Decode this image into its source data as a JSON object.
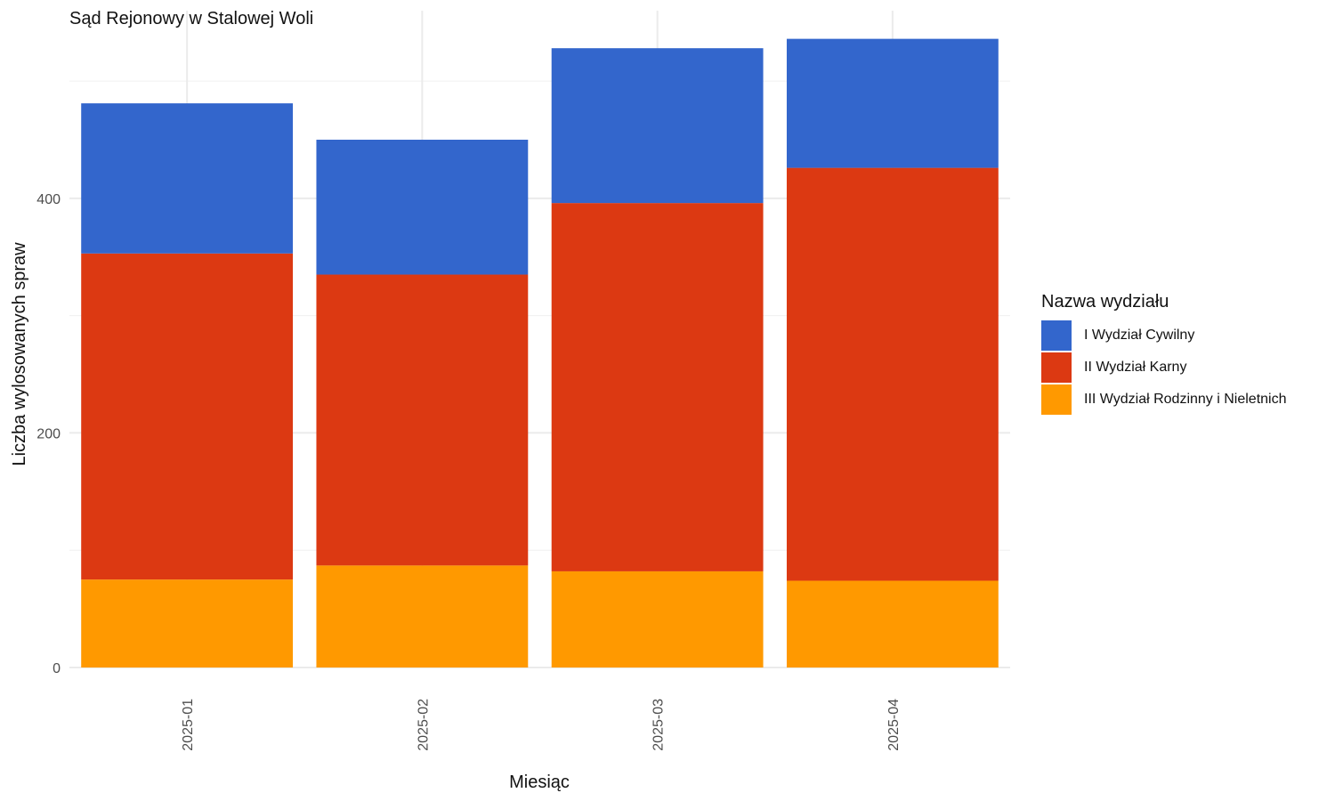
{
  "chart_data": {
    "type": "bar",
    "stacked": true,
    "title": "Sąd Rejonowy w Stalowej Woli",
    "xlabel": "Miesiąc",
    "ylabel": "Liczba wylosowanych spraw",
    "categories": [
      "2025-01",
      "2025-02",
      "2025-03",
      "2025-04"
    ],
    "ylim": [
      0,
      560
    ],
    "yticks": [
      0,
      200,
      400
    ],
    "grid": true,
    "legend_title": "Nazwa wydziału",
    "legend_position": "right",
    "series": [
      {
        "name": "III Wydział Rodzinny i Nieletnich",
        "color": "#FF9900",
        "values": [
          75,
          87,
          82,
          74
        ]
      },
      {
        "name": "II Wydział Karny",
        "color": "#DC3912",
        "values": [
          278,
          248,
          314,
          352
        ]
      },
      {
        "name": "I Wydział Cywilny",
        "color": "#3366CC",
        "values": [
          128,
          115,
          132,
          110
        ]
      }
    ]
  }
}
